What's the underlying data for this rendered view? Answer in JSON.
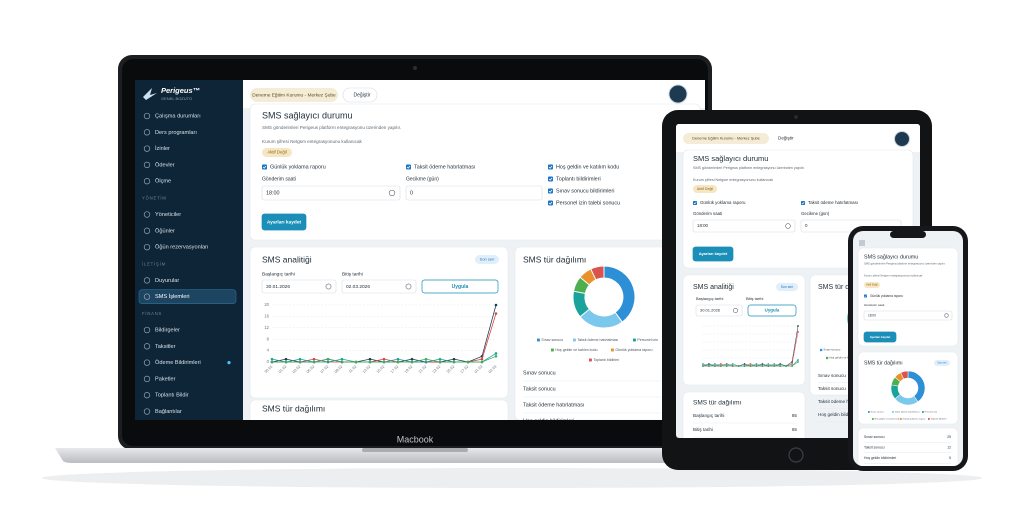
{
  "device_label": "Macbook",
  "sidebar": {
    "brand": "Perigeus™",
    "tagline": "GENEL BOZUTO",
    "items": [
      "Çalışma durumları",
      "Ders programları",
      "İzinler",
      "Ödevler",
      "Ölçme"
    ],
    "sections": [
      {
        "title": "YÖNETİM",
        "items": [
          "Yöneticiler",
          "Öğünler",
          "Öğün rezervasyonları"
        ]
      },
      {
        "title": "İLETİŞİM",
        "items": [
          "Duyurular",
          "SMS İşlemleri"
        ]
      },
      {
        "title": "FİNANS",
        "items": [
          "Bildirgeler",
          "Taksitler",
          "Ödeme Bildirimleri",
          "Paketler",
          "Toplantı Bildir",
          "Bağlantılar"
        ]
      }
    ]
  },
  "header": {
    "branch": "Deneme Eğitim Kurumu - Merkez Şube",
    "switch": "Değiştir"
  },
  "provider": {
    "title": "SMS sağlayıcı durumu",
    "description": "SMS gönderimleri Perigeus platform entegrasyonu üzerinden yapılır.",
    "note": "Kurum şifresi Netgsm entegrasyonunu kullanıcak",
    "status": "Aktif Değil",
    "options": [
      "Günlük yoklama raporu",
      "Taksit ödeme hatırlatması",
      "Hoş geldin ve katılım kodu",
      "Toplantı bildirimleri",
      "Sınav sonucu bildirimleri",
      "Personel izin talebi sonucu"
    ],
    "send_time": {
      "label": "Gönderim saati",
      "value": "18:00"
    },
    "delay": {
      "label": "Gecikme (gün)",
      "value": "0"
    },
    "save": "Ayarları kaydet"
  },
  "analytics": {
    "title": "SMS analitiği",
    "badge": "Son seri",
    "start": {
      "label": "Başlangıç tarihi",
      "value": "30.01.2026"
    },
    "end": {
      "label": "Bitiş tarihi",
      "value": "02.03.2026"
    },
    "apply": "Uygula",
    "chart": {
      "type": "line",
      "categories": [
        "30.01",
        "01.02",
        "03.02",
        "05.02",
        "07.02",
        "09.02",
        "11.02",
        "13.02",
        "15.02",
        "17.02",
        "19.02",
        "21.02",
        "23.02",
        "25.02",
        "27.02",
        "01.03",
        "02.03"
      ],
      "series": [
        {
          "color": "#1f3b57",
          "values": [
            0,
            1,
            0,
            0,
            1,
            0,
            0,
            1,
            0,
            0,
            1,
            0,
            0,
            1,
            0,
            2,
            20
          ]
        },
        {
          "color": "#d9443f",
          "values": [
            0,
            0,
            0,
            1,
            0,
            0,
            0,
            0,
            1,
            0,
            0,
            0,
            0,
            0,
            0,
            1,
            17
          ]
        },
        {
          "color": "#17a2a0",
          "values": [
            1,
            0,
            1,
            0,
            0,
            1,
            0,
            0,
            0,
            1,
            0,
            0,
            1,
            0,
            0,
            0,
            3
          ]
        },
        {
          "color": "#3fae5a",
          "values": [
            0,
            0,
            0,
            0,
            1,
            0,
            0,
            0,
            0,
            0,
            0,
            1,
            0,
            0,
            0,
            0,
            2
          ]
        }
      ],
      "ylim": [
        0,
        20
      ],
      "yticks": [
        0,
        4,
        8,
        12,
        16,
        20
      ],
      "grid": true
    }
  },
  "distribution": {
    "title": "SMS tür dağılımı",
    "chart": {
      "type": "pie",
      "categories": [
        "Sınav sonucu",
        "Taksit ödeme hatırlatması",
        "Personel izin",
        "Hoş geldin ve katılım kodu",
        "Günlük yoklama raporu",
        "Toplantı bildirimi"
      ],
      "values": [
        40,
        24,
        14,
        8,
        7,
        7
      ],
      "colors": [
        "#2d8fd5",
        "#7cc8ec",
        "#1aa39a",
        "#4caf50",
        "#e8912d",
        "#d9534f"
      ]
    },
    "rows": [
      {
        "label": "Sınav sonucu",
        "count": 25
      },
      {
        "label": "Taksit sonucu",
        "count": 12
      },
      {
        "label": "Taksit ödeme hatırlatması",
        "count": 8
      },
      {
        "label": "Hoş geldin bildirimleri",
        "count": 5
      }
    ]
  },
  "summary": {
    "title": "SMS tür dağılımı",
    "rows": [
      {
        "label": "Başlangıç tarihi",
        "count": 85
      },
      {
        "label": "Bitiş tarihi",
        "count": 65
      }
    ]
  }
}
